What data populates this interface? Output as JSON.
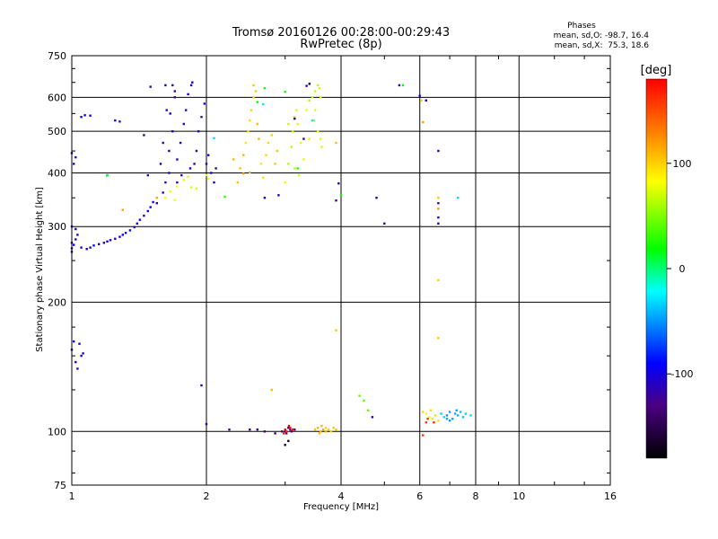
{
  "chart_data": {
    "type": "scatter",
    "title": "Tromsø 20160126 00:28:00-00:29:43",
    "subtitle": "RwPretec (8p)",
    "xlabel": "Frequency [MHz]",
    "ylabel": "Stationary phase Virtual Height [km]",
    "xscale": "log",
    "yscale": "log",
    "xlim": [
      1,
      16
    ],
    "ylim": [
      75,
      750
    ],
    "x_ticks": [
      1,
      2,
      4,
      6,
      8,
      10,
      16
    ],
    "y_ticks": [
      75,
      100,
      200,
      300,
      400,
      500,
      600,
      750
    ],
    "grid": true,
    "stats": {
      "title": "Phases",
      "line1": "mean, sd,O: -98.7, 16.4",
      "line2": "mean, sd,X:  75.3, 18.6"
    },
    "colorbar": {
      "label": "[deg]",
      "ticks": [
        -100,
        0,
        100
      ],
      "range": [
        -180,
        180
      ],
      "colors": [
        "#000000",
        "#4b0082",
        "#0000ff",
        "#00ffff",
        "#00ff00",
        "#ffff00",
        "#ff7f00",
        "#ff0000"
      ]
    },
    "series": [
      {
        "values": [
          [
            1.0,
            262
          ],
          [
            1.0,
            267
          ],
          [
            1.01,
            272
          ],
          [
            1.02,
            280
          ],
          [
            1.03,
            287
          ],
          [
            1.05,
            268
          ],
          [
            1.08,
            266
          ],
          [
            1.1,
            268
          ],
          [
            1.12,
            271
          ],
          [
            1.15,
            273
          ],
          [
            1.18,
            275
          ],
          [
            1.2,
            277
          ],
          [
            1.22,
            279
          ],
          [
            1.25,
            281
          ],
          [
            1.28,
            284
          ],
          [
            1.3,
            287
          ],
          [
            1.32,
            290
          ],
          [
            1.35,
            294
          ],
          [
            1.38,
            299
          ],
          [
            1.4,
            305
          ],
          [
            1.42,
            311
          ],
          [
            1.45,
            318
          ],
          [
            1.48,
            326
          ],
          [
            1.5,
            333
          ],
          [
            1.52,
            342
          ],
          [
            1.0,
            300
          ],
          [
            1.02,
            296
          ],
          [
            1.0,
            275
          ],
          [
            1.01,
            420
          ],
          [
            1.02,
            435
          ],
          [
            1.0,
            445
          ],
          [
            1.05,
            540
          ],
          [
            1.07,
            545
          ],
          [
            1.1,
            544
          ],
          [
            1.2,
            395
          ],
          [
            1.25,
            530
          ],
          [
            1.28,
            527
          ],
          [
            1.0,
            155
          ],
          [
            1.02,
            145
          ],
          [
            1.05,
            150
          ],
          [
            1.03,
            140
          ],
          [
            1.06,
            152
          ],
          [
            1.04,
            160
          ],
          [
            1.01,
            162
          ]
        ],
        "phase": -100
      },
      {
        "values": [
          [
            1.55,
            340
          ],
          [
            1.6,
            360
          ],
          [
            1.62,
            380
          ],
          [
            1.65,
            400
          ],
          [
            1.65,
            450
          ],
          [
            1.68,
            500
          ],
          [
            1.66,
            550
          ],
          [
            1.7,
            600
          ],
          [
            1.7,
            620
          ],
          [
            1.68,
            640
          ],
          [
            1.72,
            430
          ],
          [
            1.75,
            470
          ],
          [
            1.78,
            520
          ],
          [
            1.8,
            560
          ],
          [
            1.82,
            610
          ],
          [
            1.85,
            640
          ],
          [
            1.88,
            420
          ],
          [
            1.9,
            450
          ],
          [
            1.92,
            500
          ],
          [
            1.95,
            540
          ],
          [
            1.98,
            580
          ],
          [
            2.0,
            420
          ],
          [
            2.02,
            440
          ],
          [
            2.05,
            400
          ],
          [
            2.08,
            380
          ],
          [
            2.1,
            410
          ],
          [
            1.72,
            380
          ],
          [
            1.76,
            395
          ],
          [
            1.84,
            410
          ],
          [
            1.6,
            470
          ],
          [
            1.63,
            560
          ],
          [
            1.58,
            420
          ],
          [
            1.62,
            640
          ],
          [
            1.86,
            650
          ],
          [
            1.5,
            635
          ],
          [
            1.45,
            490
          ],
          [
            1.48,
            395
          ]
        ],
        "phase": -110
      },
      {
        "values": [
          [
            1.62,
            350
          ],
          [
            1.66,
            362
          ],
          [
            1.72,
            372
          ],
          [
            1.78,
            385
          ],
          [
            1.82,
            392
          ],
          [
            1.85,
            370
          ],
          [
            1.9,
            368
          ],
          [
            2.0,
            395
          ],
          [
            2.02,
            388
          ],
          [
            1.7,
            346
          ]
        ],
        "phase": 80
      },
      {
        "values": [
          [
            2.35,
            380
          ],
          [
            2.38,
            410
          ],
          [
            2.42,
            440
          ],
          [
            2.45,
            470
          ],
          [
            2.48,
            500
          ],
          [
            2.5,
            530
          ],
          [
            2.52,
            560
          ],
          [
            2.55,
            600
          ],
          [
            2.58,
            620
          ],
          [
            2.55,
            640
          ],
          [
            2.6,
            520
          ],
          [
            2.62,
            480
          ],
          [
            2.65,
            420
          ],
          [
            2.68,
            390
          ],
          [
            2.72,
            440
          ],
          [
            2.75,
            470
          ],
          [
            2.8,
            490
          ],
          [
            2.85,
            420
          ],
          [
            2.88,
            450
          ],
          [
            2.42,
            398
          ],
          [
            2.3,
            430
          ]
        ],
        "phase": 100
      },
      {
        "values": [
          [
            3.0,
            380
          ],
          [
            3.05,
            420
          ],
          [
            3.1,
            460
          ],
          [
            3.12,
            500
          ],
          [
            3.15,
            540
          ],
          [
            3.18,
            560
          ],
          [
            3.2,
            520
          ],
          [
            3.25,
            470
          ],
          [
            3.3,
            430
          ],
          [
            3.35,
            560
          ],
          [
            3.4,
            590
          ],
          [
            3.45,
            600
          ],
          [
            3.5,
            620
          ],
          [
            3.55,
            640
          ],
          [
            3.58,
            630
          ],
          [
            3.6,
            600
          ],
          [
            3.5,
            560
          ],
          [
            3.55,
            500
          ],
          [
            3.6,
            480
          ],
          [
            3.48,
            530
          ],
          [
            3.15,
            410
          ],
          [
            3.22,
            395
          ],
          [
            3.05,
            520
          ],
          [
            3.62,
            460
          ],
          [
            3.4,
            480
          ]
        ],
        "phase": 70
      },
      {
        "values": [
          [
            3.0,
            101
          ],
          [
            3.05,
            102
          ],
          [
            3.1,
            100
          ],
          [
            3.15,
            101
          ],
          [
            2.95,
            100
          ],
          [
            3.02,
            99
          ],
          [
            3.08,
            101
          ],
          [
            2.6,
            101
          ],
          [
            2.7,
            100
          ],
          [
            2.5,
            101
          ],
          [
            2.85,
            99
          ],
          [
            3.0,
            100
          ]
        ],
        "phase": -130
      },
      {
        "values": [
          [
            3.02,
            100
          ],
          [
            3.08,
            102
          ],
          [
            3.12,
            101
          ],
          [
            3.0,
            101
          ],
          [
            2.98,
            99
          ],
          [
            3.06,
            103
          ]
        ],
        "phase": 170
      },
      {
        "values": [
          [
            3.5,
            101
          ],
          [
            3.55,
            102
          ],
          [
            3.6,
            100
          ],
          [
            3.65,
            101
          ],
          [
            3.7,
            102
          ],
          [
            3.75,
            101
          ],
          [
            3.8,
            100
          ],
          [
            3.85,
            102
          ],
          [
            3.9,
            101
          ],
          [
            3.58,
            99
          ],
          [
            3.7,
            100
          ],
          [
            3.62,
            103
          ]
        ],
        "phase": 105
      },
      {
        "values": [
          [
            6.7,
            110
          ],
          [
            6.8,
            108
          ],
          [
            6.9,
            109
          ],
          [
            7.0,
            111
          ],
          [
            7.1,
            107
          ],
          [
            7.2,
            110
          ],
          [
            7.3,
            109
          ],
          [
            7.4,
            111
          ],
          [
            7.5,
            108
          ],
          [
            7.6,
            110
          ],
          [
            7.8,
            109
          ],
          [
            7.0,
            106
          ],
          [
            7.25,
            112
          ],
          [
            6.9,
            107
          ]
        ],
        "phase": -40
      },
      {
        "values": [
          [
            6.2,
            110
          ],
          [
            6.3,
            108
          ],
          [
            6.4,
            107
          ],
          [
            6.5,
            109
          ],
          [
            6.6,
            106
          ],
          [
            6.35,
            112
          ],
          [
            6.1,
            111
          ]
        ],
        "phase": 95
      },
      {
        "values": [
          [
            6.2,
            105
          ],
          [
            6.25,
            107
          ],
          [
            6.1,
            98
          ],
          [
            6.45,
            105
          ]
        ],
        "phase": 160
      },
      {
        "values": [
          [
            4.5,
            118
          ],
          [
            4.6,
            112
          ],
          [
            4.4,
            121
          ]
        ],
        "phase": 40
      },
      {
        "values": [
          [
            4.7,
            108
          ],
          [
            2.0,
            104
          ],
          [
            1.95,
            128
          ],
          [
            2.25,
            101
          ],
          [
            5.0,
            305
          ],
          [
            4.8,
            350
          ],
          [
            6.6,
            340
          ],
          [
            6.6,
            315
          ],
          [
            6.6,
            305
          ],
          [
            6.6,
            450
          ],
          [
            6.2,
            590
          ],
          [
            6.0,
            605
          ],
          [
            5.4,
            640
          ],
          [
            3.9,
            345
          ],
          [
            3.95,
            378
          ],
          [
            3.35,
            638
          ],
          [
            3.15,
            535
          ],
          [
            3.3,
            480
          ],
          [
            2.7,
            350
          ],
          [
            2.9,
            355
          ]
        ],
        "phase": -110
      },
      {
        "values": [
          [
            6.6,
            330
          ],
          [
            6.6,
            225
          ],
          [
            6.6,
            165
          ],
          [
            3.9,
            172
          ],
          [
            3.9,
            470
          ],
          [
            2.8,
            125
          ],
          [
            2.5,
            401
          ],
          [
            1.55,
            350
          ],
          [
            1.3,
            328
          ],
          [
            6.1,
            525
          ],
          [
            6.05,
            590
          ],
          [
            6.6,
            350
          ]
        ],
        "phase": 110
      },
      {
        "values": [
          [
            2.7,
            630
          ],
          [
            2.6,
            585
          ],
          [
            5.5,
            640
          ],
          [
            1.2,
            395
          ],
          [
            4.0,
            355
          ],
          [
            3.0,
            618
          ],
          [
            3.2,
            410
          ],
          [
            2.2,
            352
          ]
        ],
        "phase": 20
      },
      {
        "values": [
          [
            7.3,
            350
          ],
          [
            2.08,
            482
          ],
          [
            2.68,
            578
          ],
          [
            3.45,
            530
          ]
        ],
        "phase": -30
      },
      {
        "values": [
          [
            3.4,
            645
          ],
          [
            3.05,
            95
          ],
          [
            3.0,
            93
          ]
        ],
        "phase": -170
      }
    ]
  }
}
